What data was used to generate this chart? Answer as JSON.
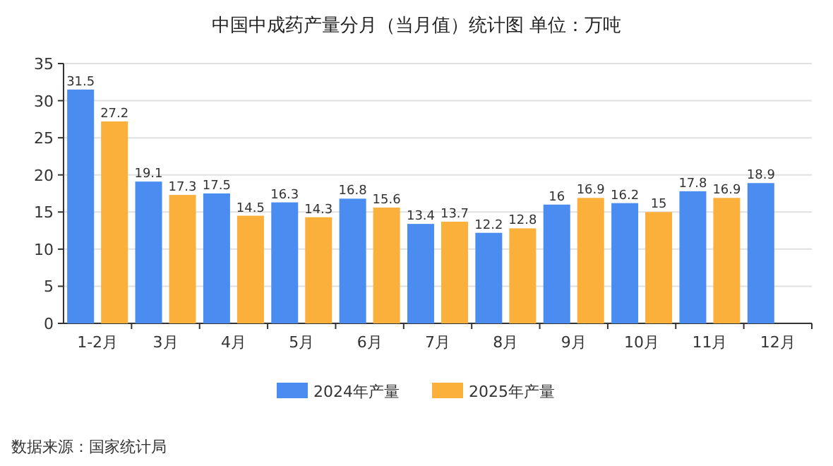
{
  "chart_data": {
    "type": "bar",
    "title": "中国中成药产量分月（当月值）统计图 单位：万吨",
    "categories": [
      "1-2月",
      "3月",
      "4月",
      "5月",
      "6月",
      "7月",
      "8月",
      "9月",
      "10月",
      "11月",
      "12月"
    ],
    "series": [
      {
        "name": "2024年产量",
        "color": "#4a8cf0",
        "values": [
          31.5,
          19.1,
          17.5,
          16.3,
          16.8,
          13.4,
          12.2,
          16,
          16.2,
          17.8,
          18.9
        ]
      },
      {
        "name": "2025年产量",
        "color": "#fbb03b",
        "values": [
          27.2,
          17.3,
          14.5,
          14.3,
          15.6,
          13.7,
          12.8,
          16.9,
          15,
          16.9,
          null
        ]
      }
    ],
    "ylim": [
      0,
      35
    ],
    "yticks": [
      0,
      5,
      10,
      15,
      20,
      25,
      30,
      35
    ],
    "grid": "y",
    "legend": "bottom",
    "data_labels": true,
    "annotations": [
      "数据来源：国家统计局"
    ]
  }
}
